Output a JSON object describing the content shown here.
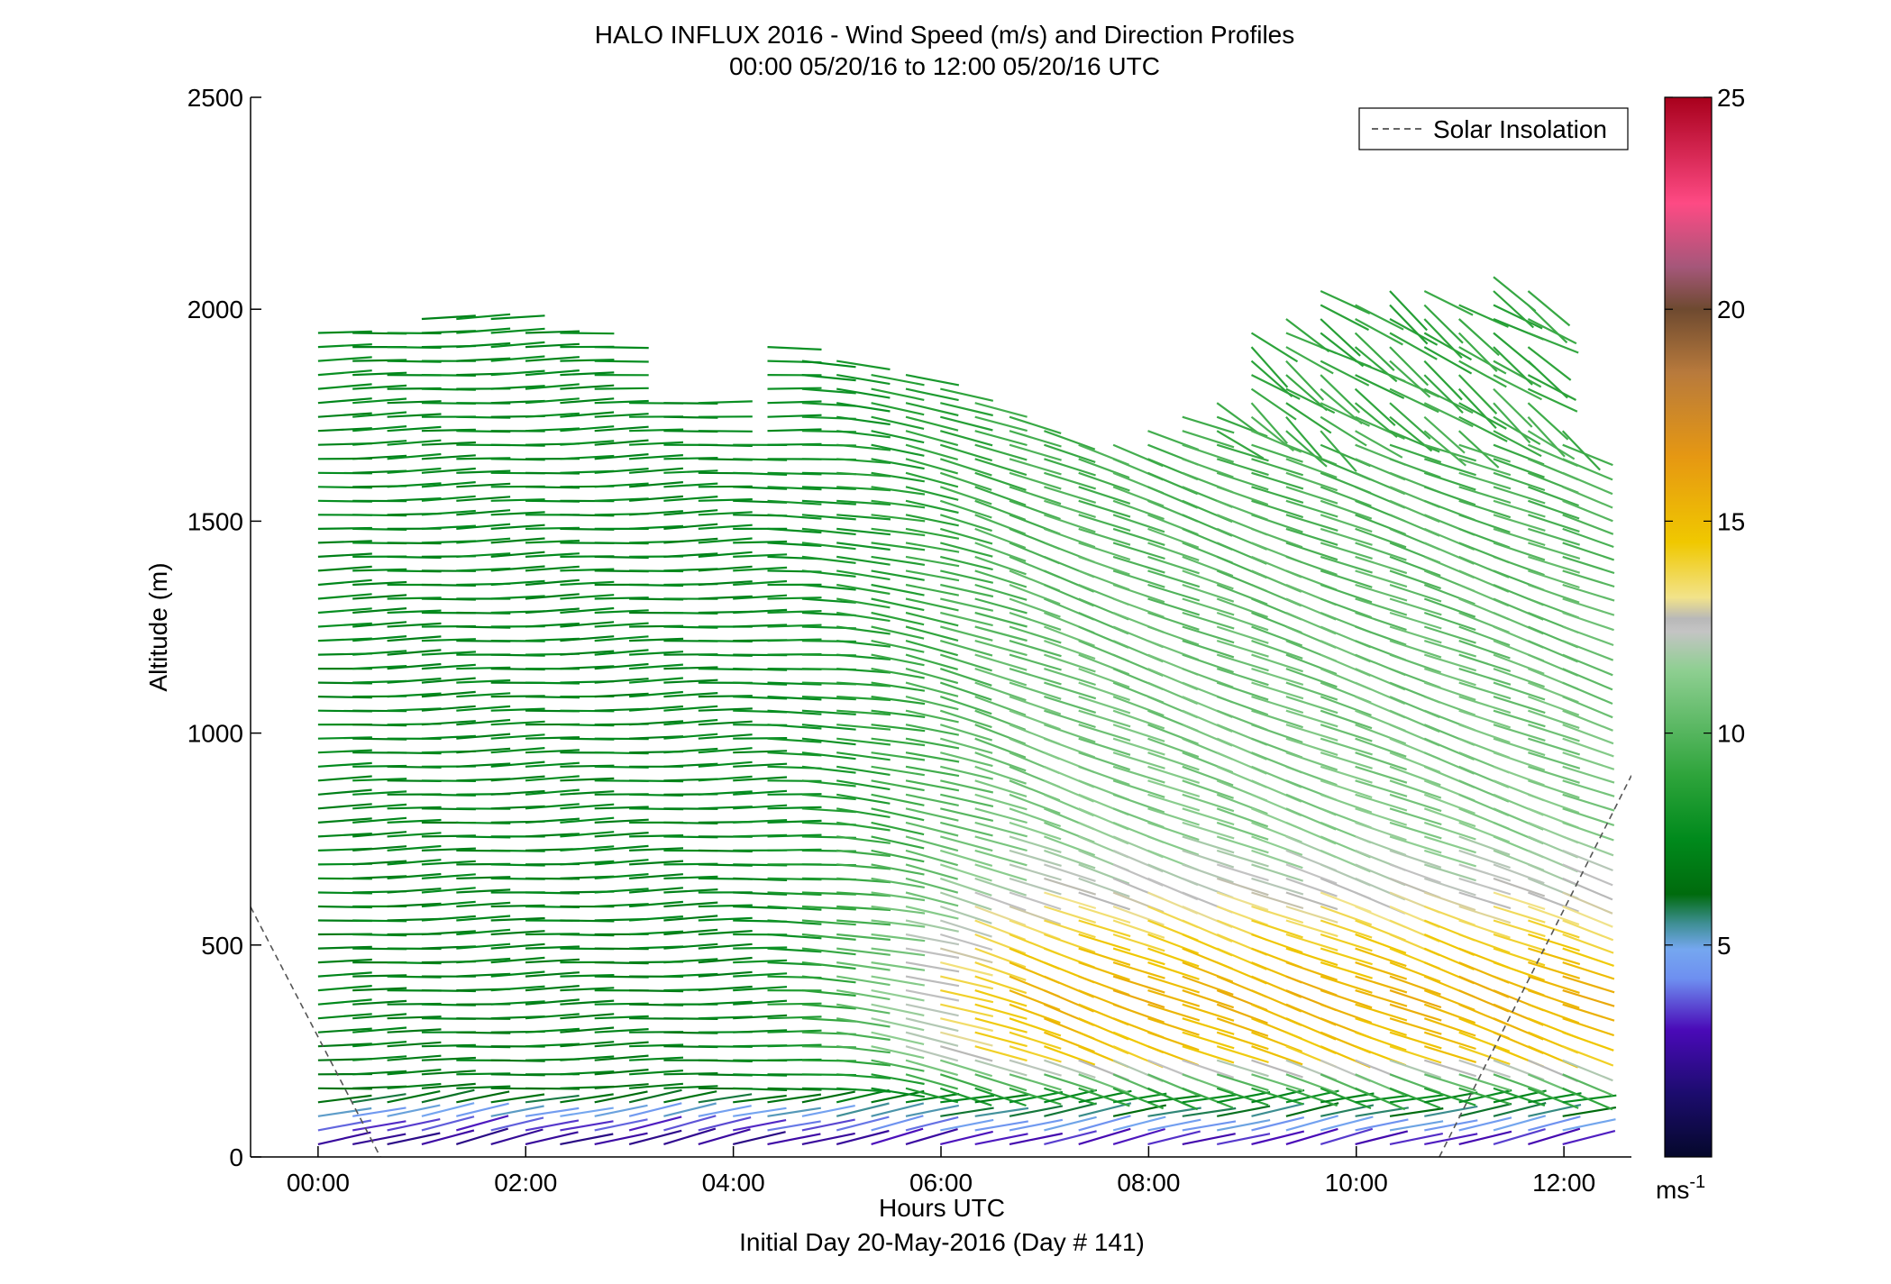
{
  "chart_data": {
    "type": "wind-barb profile",
    "title": "HALO INFLUX 2016 - Wind Speed (m/s) and Direction Profiles",
    "subtitle": "00:00 05/20/16 to 12:00 05/20/16  UTC",
    "xlabel": "Hours UTC",
    "xlabel2": "Initial Day 20-May-2016 (Day # 141)",
    "ylabel": "Altitude (m)",
    "xlim": [
      -0.65,
      12.65
    ],
    "ylim": [
      0,
      2500
    ],
    "x_ticks": [
      0,
      2,
      4,
      6,
      8,
      10,
      12
    ],
    "x_tick_labels": [
      "00:00",
      "02:00",
      "04:00",
      "06:00",
      "08:00",
      "10:00",
      "12:00"
    ],
    "y_ticks": [
      0,
      500,
      1000,
      1500,
      2000,
      2500
    ],
    "y_tick_labels": [
      "0",
      "500",
      "1000",
      "1500",
      "2000",
      "2500"
    ],
    "legend": {
      "label": "Solar Insolation",
      "placement": "top-right"
    },
    "solar_insolation": [
      {
        "x": [
          -0.65,
          0.6
        ],
        "y": [
          590,
          0
        ]
      },
      {
        "x": [
          10.8,
          12.65
        ],
        "y": [
          0,
          900
        ]
      }
    ],
    "colorbar": {
      "range": [
        0,
        25
      ],
      "ticks": [
        5,
        10,
        15,
        20,
        25
      ],
      "tick_labels": [
        "5",
        "10",
        "15",
        "20",
        "25"
      ],
      "unit": "ms",
      "unit_exp": "-1",
      "stops": [
        [
          0,
          "#05082b"
        ],
        [
          1.5,
          "#1c0c6e"
        ],
        [
          3,
          "#4a0ab8"
        ],
        [
          4.2,
          "#6e8ff0"
        ],
        [
          4.9,
          "#75a7f0"
        ],
        [
          5.5,
          "#3f8f95"
        ],
        [
          6.2,
          "#006b0d"
        ],
        [
          7.5,
          "#008a1c"
        ],
        [
          9,
          "#2ea43b"
        ],
        [
          11.5,
          "#8fcf92"
        ],
        [
          12.4,
          "#c4c4c4"
        ],
        [
          12.7,
          "#b8b8b8"
        ],
        [
          13.2,
          "#f2e38a"
        ],
        [
          14.5,
          "#f0c800"
        ],
        [
          16.5,
          "#e69812"
        ],
        [
          18.5,
          "#b87a3c"
        ],
        [
          20,
          "#6e4a30"
        ],
        [
          21,
          "#a5577a"
        ],
        [
          22.5,
          "#fe4a84"
        ],
        [
          25,
          "#a8001c"
        ]
      ]
    },
    "sampling": {
      "t_start": 0,
      "t_end": 12,
      "t_step": 0.333,
      "z_start": 30,
      "z_step": 33
    },
    "top_height_profile": [
      {
        "t": 0,
        "z": 1960
      },
      {
        "t": 0.67,
        "z": 1960
      },
      {
        "t": 1,
        "z": 2010
      },
      {
        "t": 1.67,
        "z": 1990
      },
      {
        "t": 2,
        "z": 1960
      },
      {
        "t": 2.67,
        "z": 1930
      },
      {
        "t": 3,
        "z": 1800
      },
      {
        "t": 3.67,
        "z": 1790
      },
      {
        "t": 4,
        "z": 1700
      },
      {
        "t": 4.33,
        "z": 1920
      },
      {
        "t": 5,
        "z": 1880
      },
      {
        "t": 5.33,
        "z": 1860
      },
      {
        "t": 6,
        "z": 1830
      },
      {
        "t": 6.67,
        "z": 1760
      },
      {
        "t": 7.33,
        "z": 1700
      },
      {
        "t": 7.67,
        "z": 1680
      },
      {
        "t": 8,
        "z": 1730
      },
      {
        "t": 8.67,
        "z": 1800
      },
      {
        "t": 9,
        "z": 1960
      },
      {
        "t": 9.67,
        "z": 2050
      },
      {
        "t": 10,
        "z": 2040
      },
      {
        "t": 10.67,
        "z": 2050
      },
      {
        "t": 11,
        "z": 2030
      },
      {
        "t": 11.33,
        "z": 2080
      },
      {
        "t": 11.67,
        "z": 2060
      },
      {
        "t": 12,
        "z": 1700
      }
    ],
    "speed_profile_early": [
      [
        0,
        1.5
      ],
      [
        40,
        2.5
      ],
      [
        70,
        3.8
      ],
      [
        100,
        5
      ],
      [
        130,
        6.3
      ],
      [
        180,
        7
      ],
      [
        700,
        7.3
      ],
      [
        2000,
        7.5
      ]
    ],
    "speed_profile_late": [
      [
        0,
        2
      ],
      [
        40,
        3.5
      ],
      [
        70,
        5
      ],
      [
        100,
        6
      ],
      [
        150,
        8.5
      ],
      [
        200,
        10.5
      ],
      [
        260,
        14.5
      ],
      [
        400,
        15.5
      ],
      [
        550,
        14
      ],
      [
        650,
        12.5
      ],
      [
        800,
        11.2
      ],
      [
        1200,
        10.5
      ],
      [
        2000,
        9
      ]
    ],
    "direction_deg": {
      "low": 255,
      "early_upper": 268,
      "late_upper": 290,
      "top_late": 305
    }
  }
}
